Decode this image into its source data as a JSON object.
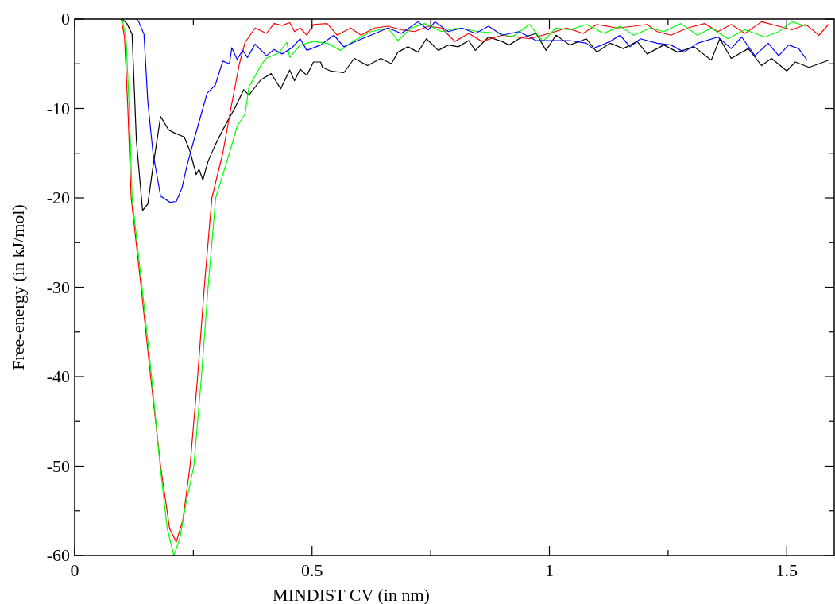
{
  "chart_data": {
    "type": "line",
    "xlabel": "MINDIST CV (in nm)",
    "ylabel": "Free-energy (in kJ/mol)",
    "xlim": [
      0,
      1.6
    ],
    "ylim": [
      -60,
      0
    ],
    "xticks": [
      0,
      {
        "value": 0.25,
        "label": null
      },
      0.5,
      {
        "value": 0.75,
        "label": null
      },
      1,
      {
        "value": 1.25,
        "label": null
      },
      1.5
    ],
    "yticks": [
      -60,
      {
        "value": -55,
        "label": null
      },
      -50,
      {
        "value": -45,
        "label": null
      },
      -40,
      {
        "value": -35,
        "label": null
      },
      -30,
      {
        "value": -25,
        "label": null
      },
      -20,
      {
        "value": -15,
        "label": null
      },
      -10,
      {
        "value": -5,
        "label": null
      },
      0
    ],
    "grid": false,
    "marker": "none",
    "line_style": "solid",
    "series": [
      {
        "color": "#000000",
        "x": [
          0.1,
          0.11,
          0.121,
          0.13,
          0.143,
          0.154,
          0.165,
          0.181,
          0.198,
          0.209,
          0.231,
          0.243,
          0.256,
          0.262,
          0.27,
          0.281,
          0.296,
          0.309,
          0.321,
          0.337,
          0.356,
          0.367,
          0.392,
          0.414,
          0.434,
          0.453,
          0.463,
          0.475,
          0.489,
          0.503,
          0.518,
          0.522,
          0.539,
          0.567,
          0.589,
          0.617,
          0.645,
          0.667,
          0.681,
          0.702,
          0.723,
          0.741,
          0.766,
          0.787,
          0.808,
          0.83,
          0.844,
          0.872,
          0.9,
          0.915,
          0.936,
          0.972,
          0.993,
          1.014,
          1.043,
          1.078,
          1.1,
          1.128,
          1.156,
          1.185,
          1.206,
          1.241,
          1.27,
          1.305,
          1.341,
          1.359,
          1.383,
          1.419,
          1.447,
          1.468,
          1.5,
          1.518,
          1.547,
          1.568,
          1.588
        ],
        "values": [
          0,
          -0.5,
          -1.7,
          -13.6,
          -21.4,
          -20.7,
          -16.5,
          -10.9,
          -12.4,
          -12.7,
          -13.2,
          -14.8,
          -17.4,
          -16.8,
          -18,
          -15.9,
          -14.1,
          -12.7,
          -11.5,
          -10,
          -7.9,
          -8.5,
          -6.8,
          -6.1,
          -7.8,
          -5.7,
          -6.9,
          -5.6,
          -6.3,
          -4.8,
          -4.8,
          -5.4,
          -5.8,
          -6,
          -4.4,
          -5.2,
          -4.4,
          -5,
          -3.7,
          -3.1,
          -3.7,
          -2.2,
          -3.5,
          -2.9,
          -3.1,
          -2.4,
          -3.5,
          -2,
          -2.5,
          -2.9,
          -2.2,
          -1.6,
          -3.5,
          -1.8,
          -2.9,
          -2.2,
          -3.7,
          -2.7,
          -3.3,
          -2.5,
          -3.9,
          -2.9,
          -3.7,
          -3.1,
          -4.6,
          -2.2,
          -4.4,
          -3.3,
          -5.2,
          -4.4,
          -5.8,
          -4.8,
          -5.4,
          -5,
          -4.6
        ]
      },
      {
        "color": "#ff0000",
        "x": [
          0.098,
          0.105,
          0.112,
          0.119,
          0.14,
          0.16,
          0.181,
          0.2,
          0.214,
          0.228,
          0.243,
          0.259,
          0.273,
          0.289,
          0.312,
          0.329,
          0.347,
          0.359,
          0.38,
          0.404,
          0.42,
          0.437,
          0.453,
          0.463,
          0.475,
          0.489,
          0.503,
          0.532,
          0.553,
          0.581,
          0.603,
          0.631,
          0.66,
          0.688,
          0.716,
          0.745,
          0.773,
          0.801,
          0.83,
          0.858,
          0.9,
          0.929,
          0.958,
          1.0,
          1.036,
          1.071,
          1.1,
          1.142,
          1.178,
          1.206,
          1.227,
          1.256,
          1.291,
          1.327,
          1.355,
          1.383,
          1.412,
          1.447,
          1.483,
          1.511,
          1.54,
          1.568,
          1.588
        ],
        "values": [
          0,
          -2,
          -10,
          -20,
          -30,
          -40,
          -50,
          -57,
          -58.5,
          -56,
          -50,
          -40,
          -30,
          -20,
          -15,
          -10,
          -5,
          -2.6,
          -1,
          -1.6,
          -0.5,
          -0.7,
          -0.4,
          -1.4,
          -1,
          -1.8,
          -0.6,
          -0.5,
          -1.8,
          -1,
          -1.8,
          -1,
          -0.8,
          -1.2,
          -1.4,
          -0.8,
          -1,
          -2.5,
          -1.6,
          -2.5,
          -1.8,
          -2,
          -2.2,
          -1.6,
          -1,
          -1.6,
          -0.6,
          -1,
          -0.8,
          -0.6,
          -1.4,
          -1.8,
          -1,
          -0.5,
          -1.4,
          -0.6,
          -1.6,
          -0.3,
          -0.8,
          -1.2,
          -0.6,
          -1.8,
          -0.6
        ]
      },
      {
        "color": "#00ff00",
        "x": [
          0.1,
          0.108,
          0.115,
          0.121,
          0.142,
          0.162,
          0.18,
          0.195,
          0.209,
          0.222,
          0.235,
          0.251,
          0.267,
          0.281,
          0.297,
          0.326,
          0.342,
          0.359,
          0.367,
          0.392,
          0.403,
          0.43,
          0.447,
          0.453,
          0.47,
          0.475,
          0.503,
          0.532,
          0.56,
          0.589,
          0.624,
          0.66,
          0.681,
          0.709,
          0.737,
          0.773,
          0.808,
          0.851,
          0.894,
          0.922,
          0.958,
          0.986,
          1.014,
          1.043,
          1.078,
          1.114,
          1.149,
          1.178,
          1.213,
          1.241,
          1.277,
          1.312,
          1.341,
          1.376,
          1.412,
          1.454,
          1.483,
          1.511,
          1.54
        ],
        "values": [
          0,
          -2,
          -10,
          -20,
          -30,
          -40,
          -50,
          -57,
          -60,
          -58,
          -54,
          -50,
          -40,
          -30,
          -20,
          -15,
          -12,
          -10.6,
          -7.6,
          -5.2,
          -4.4,
          -3.8,
          -2.6,
          -4.3,
          -3.2,
          -2.9,
          -2.5,
          -2.7,
          -3.5,
          -2.4,
          -1.4,
          -1,
          -2.4,
          -1,
          -0.5,
          -1.4,
          -1,
          -1.4,
          -1.6,
          -2,
          -0.6,
          -2.5,
          -1,
          -1.2,
          -0.6,
          -1.6,
          -0.8,
          -1.8,
          -1,
          -1.4,
          -0.5,
          -1.8,
          -1,
          -2.2,
          -1.2,
          -2,
          -1.4,
          -0.3,
          -0.8
        ]
      },
      {
        "color": "#0000ff",
        "x": [
          0.13,
          0.135,
          0.146,
          0.154,
          0.165,
          0.181,
          0.201,
          0.214,
          0.226,
          0.237,
          0.254,
          0.27,
          0.279,
          0.296,
          0.312,
          0.326,
          0.331,
          0.342,
          0.354,
          0.364,
          0.38,
          0.404,
          0.42,
          0.437,
          0.458,
          0.475,
          0.489,
          0.518,
          0.546,
          0.567,
          0.596,
          0.624,
          0.66,
          0.688,
          0.723,
          0.745,
          0.759,
          0.787,
          0.816,
          0.844,
          0.872,
          0.9,
          0.936,
          0.972,
          1.0,
          1.043,
          1.078,
          1.092,
          1.128,
          1.149,
          1.17,
          1.192,
          1.227,
          1.256,
          1.284,
          1.312,
          1.355,
          1.383,
          1.405,
          1.433,
          1.461,
          1.483,
          1.504,
          1.525,
          1.543
        ],
        "values": [
          0,
          -0.3,
          -1.7,
          -9.2,
          -15,
          -19.8,
          -20.5,
          -20.4,
          -18.9,
          -16.3,
          -13,
          -10,
          -8.3,
          -7.4,
          -4.7,
          -5,
          -3.2,
          -4.5,
          -3.5,
          -4.3,
          -2.8,
          -4.1,
          -3.4,
          -3.9,
          -3.2,
          -2.2,
          -3.5,
          -2.9,
          -1.8,
          -3.1,
          -2.4,
          -1.8,
          -1,
          -1.6,
          -0.3,
          -1.2,
          -0.3,
          -1.4,
          -1,
          -1.6,
          -0.8,
          -1.8,
          -1.4,
          -2.4,
          -2.4,
          -2.4,
          -2.7,
          -3.3,
          -2.5,
          -1.8,
          -3.1,
          -2.2,
          -2.7,
          -2.9,
          -3.7,
          -2.7,
          -2,
          -3.3,
          -2,
          -4.1,
          -2.7,
          -4.1,
          -2.9,
          -3.3,
          -4.6
        ]
      }
    ]
  }
}
